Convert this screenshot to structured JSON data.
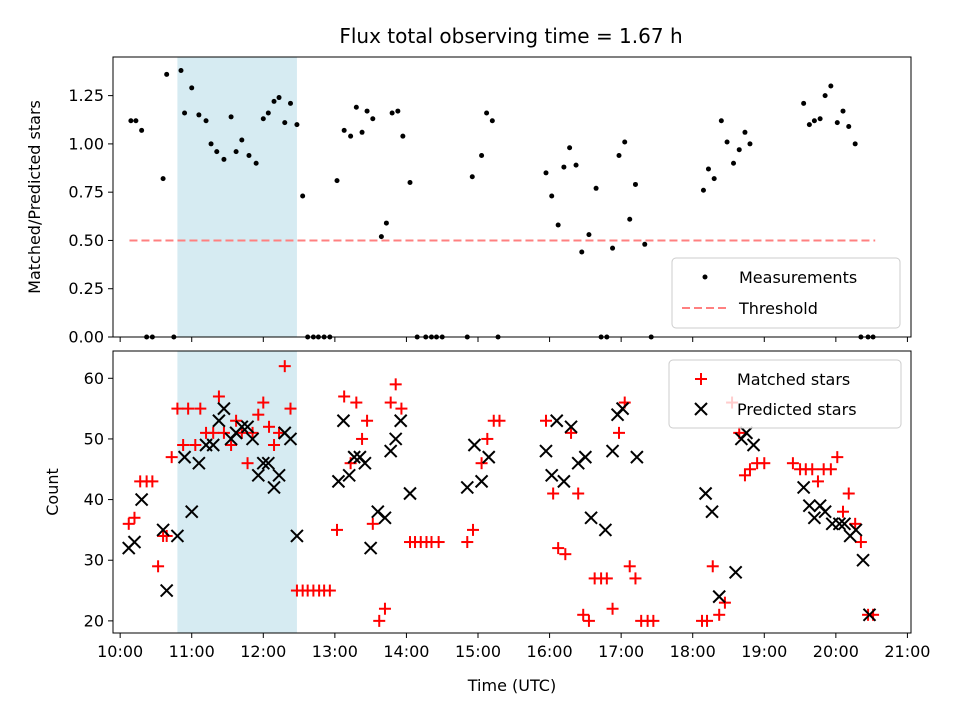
{
  "chart_data": {
    "type": "scatter",
    "title": "Flux total observing time = 1.67 h",
    "xlabel": "Time (UTC)",
    "xticks": [
      "10:00",
      "11:00",
      "12:00",
      "13:00",
      "14:00",
      "15:00",
      "16:00",
      "17:00",
      "18:00",
      "19:00",
      "20:00",
      "21:00"
    ],
    "xlim_hours": [
      9.9,
      21.05
    ],
    "highlight_span_hours": [
      10.8,
      12.47
    ],
    "highlight_color": "#add8e6",
    "top": {
      "ylabel": "Matched/Predicted stars",
      "ylim": [
        0,
        1.45
      ],
      "yticks": [
        "0.00",
        "0.25",
        "0.50",
        "0.75",
        "1.00",
        "1.25"
      ],
      "threshold": {
        "name": "Threshold",
        "value": 0.5,
        "x_range_hours": [
          10.13,
          20.55
        ],
        "color": "#ff8080"
      },
      "measurements": {
        "name": "Measurements",
        "color": "#000000",
        "x": [
          10.15,
          10.22,
          10.3,
          10.37,
          10.45,
          10.6,
          10.65,
          10.75,
          10.85,
          10.9,
          11.0,
          11.1,
          11.2,
          11.27,
          11.35,
          11.45,
          11.55,
          11.62,
          11.7,
          11.8,
          11.9,
          12.0,
          12.07,
          12.15,
          12.22,
          12.3,
          12.38,
          12.47,
          12.55,
          12.62,
          12.7,
          12.77,
          12.85,
          12.93,
          13.03,
          13.13,
          13.22,
          13.3,
          13.38,
          13.45,
          13.53,
          13.65,
          13.72,
          13.8,
          13.88,
          13.95,
          14.05,
          14.15,
          14.27,
          14.35,
          14.42,
          14.5,
          14.85,
          14.92,
          15.05,
          15.12,
          15.2,
          15.28,
          15.95,
          16.03,
          16.12,
          16.2,
          16.28,
          16.37,
          16.45,
          16.55,
          16.65,
          16.72,
          16.8,
          16.88,
          16.97,
          17.05,
          17.12,
          17.2,
          17.33,
          17.42,
          18.15,
          18.22,
          18.3,
          18.4,
          18.48,
          18.57,
          18.65,
          18.73,
          18.8,
          19.55,
          19.63,
          19.7,
          19.78,
          19.85,
          19.93,
          20.02,
          20.1,
          20.18,
          20.27,
          20.35,
          20.45,
          20.52
        ],
        "y": [
          1.12,
          1.12,
          1.07,
          0.0,
          0.0,
          0.82,
          1.36,
          0.0,
          1.38,
          1.16,
          1.29,
          1.15,
          1.12,
          1.0,
          0.96,
          0.92,
          1.14,
          0.96,
          1.02,
          0.94,
          0.9,
          1.13,
          1.16,
          1.22,
          1.24,
          1.11,
          1.21,
          1.1,
          0.73,
          0.0,
          0.0,
          0.0,
          0.0,
          0.0,
          0.81,
          1.07,
          1.04,
          1.19,
          1.06,
          1.17,
          1.13,
          0.52,
          0.59,
          1.16,
          1.17,
          1.04,
          0.8,
          0.0,
          0.0,
          0.0,
          0.0,
          0.0,
          0.0,
          0.83,
          0.94,
          1.16,
          1.12,
          0.0,
          0.85,
          0.73,
          0.58,
          0.88,
          0.98,
          0.89,
          0.44,
          0.53,
          0.77,
          0.0,
          0.0,
          0.46,
          0.94,
          1.01,
          0.61,
          0.79,
          0.48,
          0.0,
          0.76,
          0.87,
          0.82,
          1.12,
          1.01,
          0.9,
          0.97,
          1.06,
          1.0,
          1.21,
          1.1,
          1.12,
          1.13,
          1.25,
          1.3,
          1.11,
          1.17,
          1.09,
          1.0,
          0.0,
          0.0,
          0.0
        ]
      }
    },
    "bottom": {
      "ylabel": "Count",
      "ylim": [
        18,
        64.5
      ],
      "yticks": [
        "20",
        "30",
        "40",
        "50",
        "60"
      ],
      "matched": {
        "name": "Matched stars",
        "color": "#ff0000",
        "x": [
          10.12,
          10.2,
          10.28,
          10.37,
          10.45,
          10.53,
          10.6,
          10.65,
          10.72,
          10.8,
          10.88,
          10.95,
          11.05,
          11.12,
          11.2,
          11.3,
          11.38,
          11.45,
          11.55,
          11.62,
          11.7,
          11.78,
          11.85,
          11.93,
          12.0,
          12.08,
          12.15,
          12.22,
          12.3,
          12.38,
          12.47,
          12.55,
          12.62,
          12.7,
          12.78,
          12.85,
          12.93,
          13.03,
          13.13,
          13.22,
          13.3,
          13.38,
          13.45,
          13.53,
          13.62,
          13.7,
          13.78,
          13.85,
          13.93,
          14.05,
          14.12,
          14.2,
          14.28,
          14.35,
          14.45,
          14.85,
          14.93,
          15.05,
          15.13,
          15.22,
          15.3,
          15.95,
          16.05,
          16.12,
          16.22,
          16.3,
          16.4,
          16.47,
          16.55,
          16.63,
          16.72,
          16.8,
          16.88,
          16.97,
          17.05,
          17.12,
          17.2,
          17.28,
          17.37,
          17.45,
          18.13,
          18.2,
          18.28,
          18.37,
          18.45,
          18.55,
          18.65,
          18.73,
          18.8,
          18.9,
          19.0,
          19.4,
          19.5,
          19.58,
          19.67,
          19.75,
          19.83,
          19.93,
          20.02,
          20.1,
          20.18,
          20.27,
          20.35,
          20.45,
          20.52
        ],
        "y": [
          36,
          37,
          43,
          43,
          43,
          29,
          34,
          34,
          47,
          55,
          49,
          55,
          49,
          55,
          51,
          51,
          57,
          51,
          49,
          53,
          51,
          46,
          51,
          54,
          56,
          52,
          49,
          51,
          62,
          55,
          25,
          25,
          25,
          25,
          25,
          25,
          25,
          35,
          57,
          46,
          56,
          50,
          53,
          36,
          20,
          22,
          56,
          59,
          55,
          33,
          33,
          33,
          33,
          33,
          33,
          33,
          35,
          46,
          50,
          53,
          53,
          53,
          41,
          32,
          31,
          51,
          41,
          21,
          20,
          27,
          27,
          27,
          22,
          51,
          56,
          29,
          27,
          20,
          20,
          20,
          20,
          20,
          29,
          21,
          23,
          56,
          51,
          44,
          45,
          46,
          46,
          46,
          45,
          45,
          45,
          43,
          45,
          45,
          47,
          38,
          41,
          36,
          33,
          21,
          21
        ]
      },
      "predicted": {
        "name": "Predicted stars",
        "color": "#000000",
        "x": [
          10.12,
          10.2,
          10.3,
          10.6,
          10.65,
          10.8,
          10.9,
          11.0,
          11.1,
          11.2,
          11.3,
          11.38,
          11.45,
          11.55,
          11.62,
          11.7,
          11.78,
          11.85,
          11.93,
          12.0,
          12.07,
          12.15,
          12.22,
          12.3,
          12.38,
          12.47,
          13.05,
          13.12,
          13.2,
          13.27,
          13.35,
          13.42,
          13.5,
          13.6,
          13.7,
          13.78,
          13.85,
          13.92,
          14.05,
          14.85,
          14.95,
          15.05,
          15.15,
          15.95,
          16.03,
          16.1,
          16.2,
          16.3,
          16.4,
          16.5,
          16.58,
          16.78,
          16.88,
          16.95,
          17.02,
          17.22,
          18.18,
          18.27,
          18.37,
          18.6,
          18.68,
          18.75,
          18.85,
          19.55,
          19.63,
          19.7,
          19.78,
          19.85,
          19.95,
          20.05,
          20.12,
          20.2,
          20.28,
          20.38,
          20.47
        ],
        "y": [
          32,
          33,
          40,
          35,
          25,
          34,
          47,
          38,
          46,
          49,
          49,
          53,
          55,
          50,
          51,
          52,
          52,
          50,
          44,
          46,
          46,
          42,
          44,
          51,
          50,
          34,
          43,
          53,
          44,
          47,
          47,
          46,
          32,
          38,
          37,
          48,
          50,
          53,
          41,
          42,
          49,
          43,
          47,
          48,
          44,
          53,
          43,
          52,
          46,
          47,
          37,
          35,
          48,
          54,
          55,
          47,
          41,
          38,
          24,
          28,
          50,
          51,
          49,
          42,
          39,
          37,
          39,
          38,
          36,
          36,
          36,
          34,
          35,
          30,
          21
        ]
      }
    }
  }
}
